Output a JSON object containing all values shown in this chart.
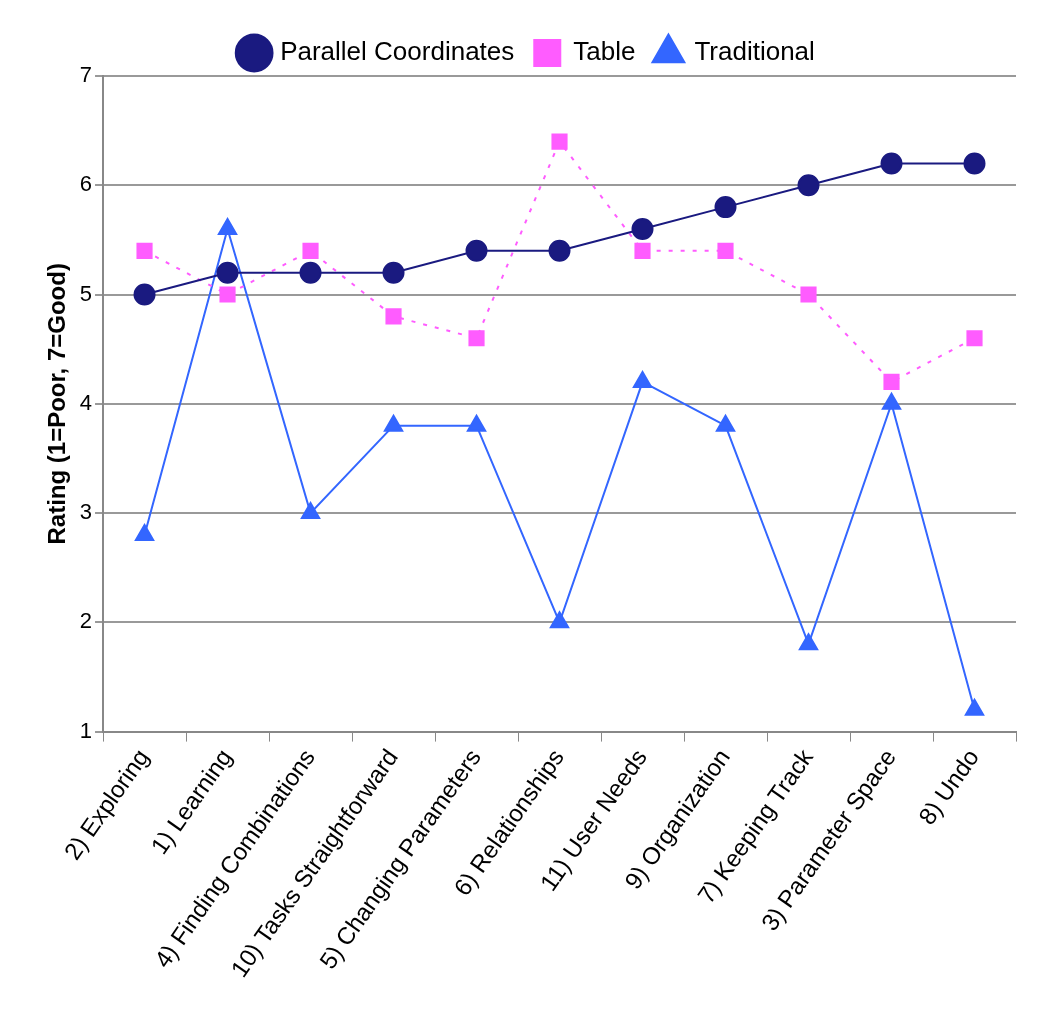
{
  "chart_data": {
    "type": "line",
    "ylabel": "Rating (1=Poor, 7=Good)",
    "categories": [
      "2) Exploring",
      "1) Learning",
      "4) Finding Combinations",
      "10) Tasks Straightforward",
      "5) Changing Parameters",
      "6) Relationships",
      "11) User Needs",
      "9) Organization",
      "7) Keeping Track",
      "3) Parameter Space",
      "8) Undo"
    ],
    "series": [
      {
        "name": "Parallel Coordinates",
        "color": "#1a1a80",
        "marker": "circle",
        "line_style": "solid",
        "values": [
          5.0,
          5.2,
          5.2,
          5.2,
          5.4,
          5.4,
          5.6,
          5.8,
          6.0,
          6.2,
          6.2
        ]
      },
      {
        "name": "Table",
        "color": "#ff5cff",
        "marker": "square",
        "line_style": "dotted",
        "values": [
          5.4,
          5.0,
          5.4,
          4.8,
          4.6,
          6.4,
          5.4,
          5.4,
          5.0,
          4.2,
          4.6
        ]
      },
      {
        "name": "Traditional",
        "color": "#3366ff",
        "marker": "triangle",
        "line_style": "solid",
        "values": [
          2.8,
          5.6,
          3.0,
          3.8,
          3.8,
          2.0,
          4.2,
          3.8,
          1.8,
          4.0,
          1.2
        ]
      }
    ],
    "ylim": [
      1,
      7
    ],
    "yticks": [
      1,
      2,
      3,
      4,
      5,
      6,
      7
    ],
    "grid": "y",
    "legend": "top"
  }
}
